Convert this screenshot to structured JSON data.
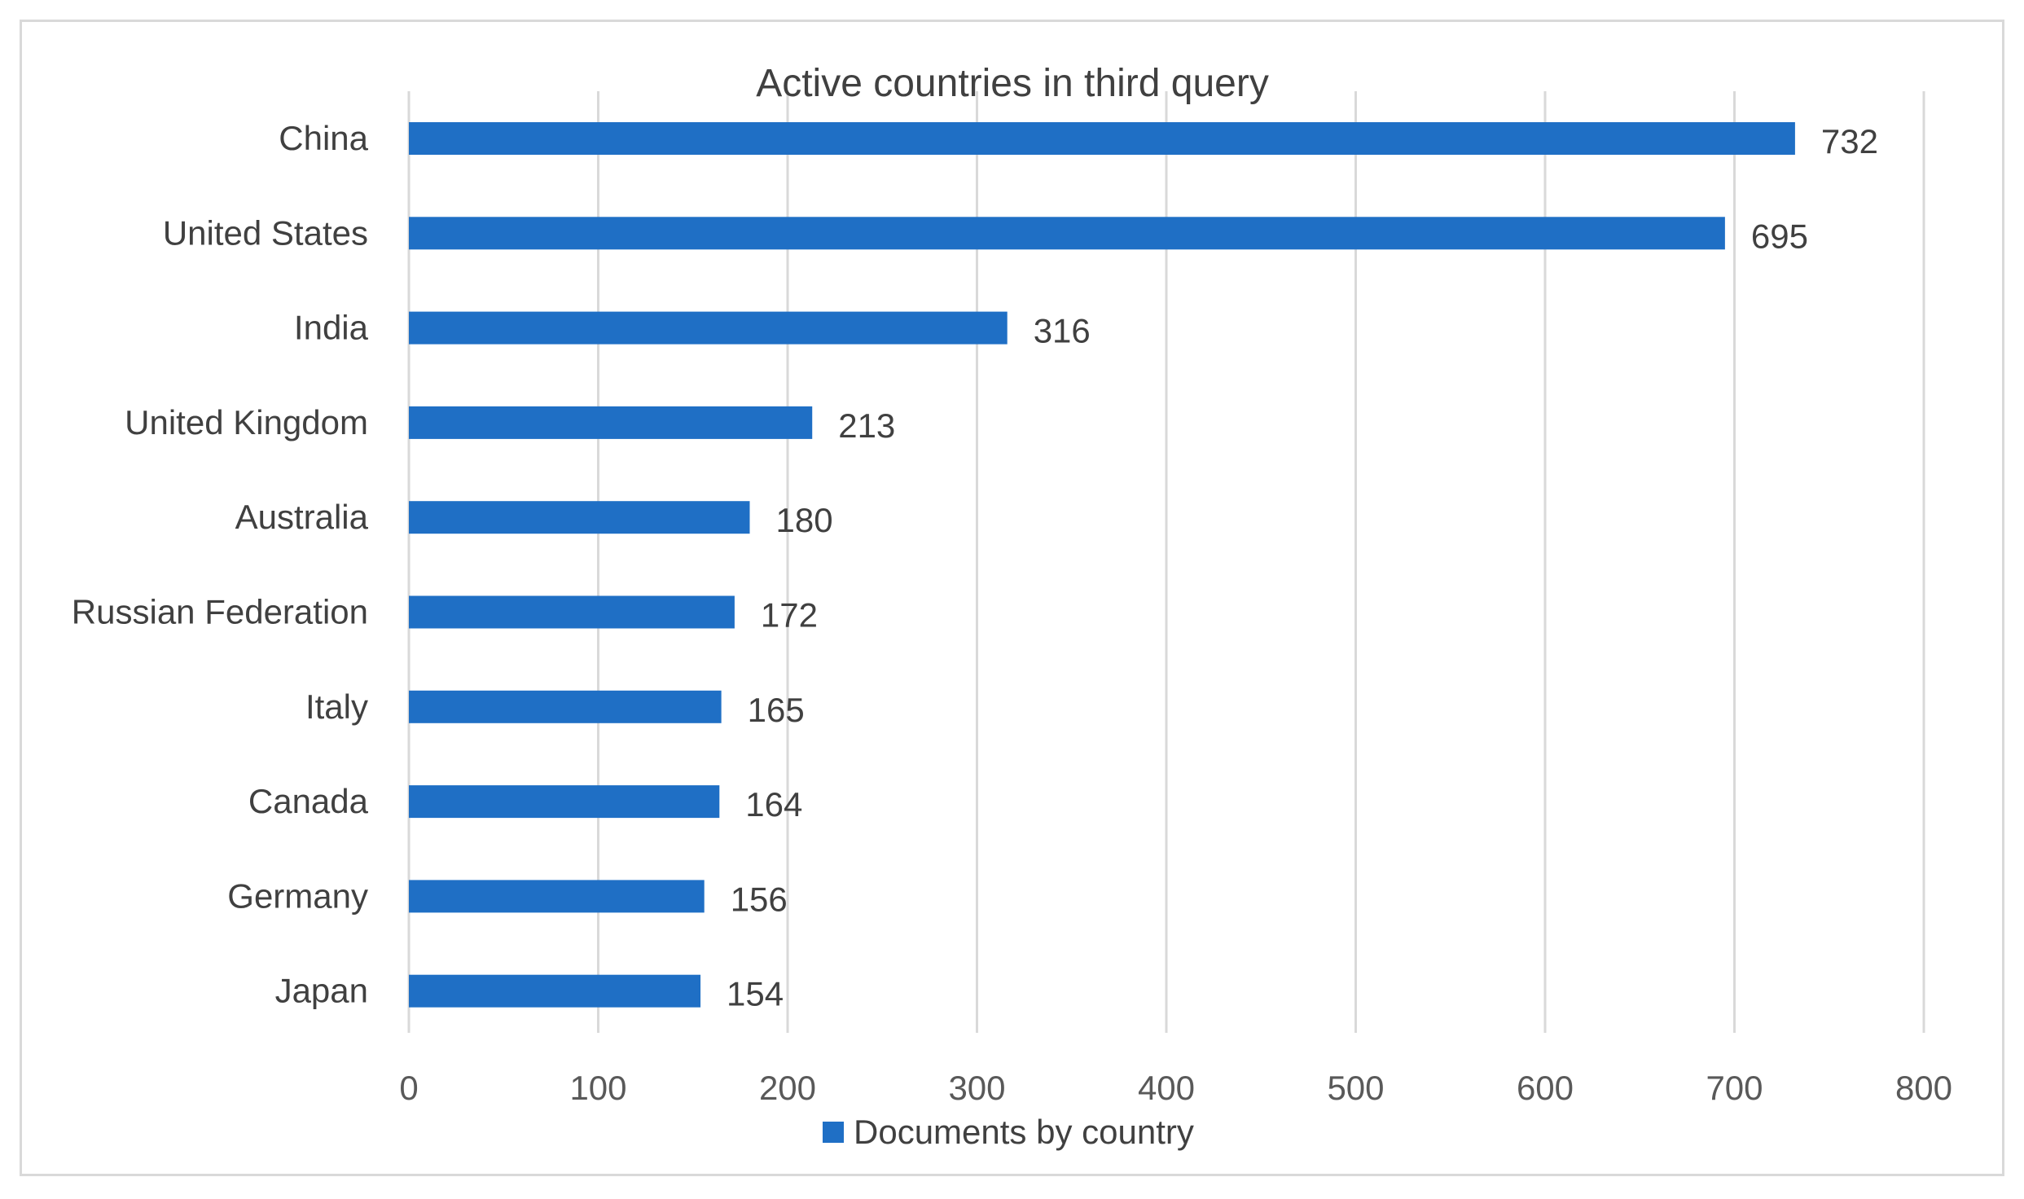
{
  "chart_data": {
    "type": "bar",
    "orientation": "horizontal",
    "title": "Active countries in third query",
    "categories": [
      "China",
      "United States",
      "India",
      "United Kingdom",
      "Australia",
      "Russian Federation",
      "Italy",
      "Canada",
      "Germany",
      "Japan"
    ],
    "series": [
      {
        "name": "Documents by country",
        "values": [
          732,
          695,
          316,
          213,
          180,
          172,
          165,
          164,
          156,
          154
        ],
        "color": "#1f6fc5"
      }
    ],
    "xlim": [
      0,
      800
    ],
    "xticks": [
      0,
      100,
      200,
      300,
      400,
      500,
      600,
      700,
      800
    ],
    "grid": "vertical",
    "gridline_color": "#d9d9d9",
    "legend_position": "bottom",
    "data_labels": true
  }
}
